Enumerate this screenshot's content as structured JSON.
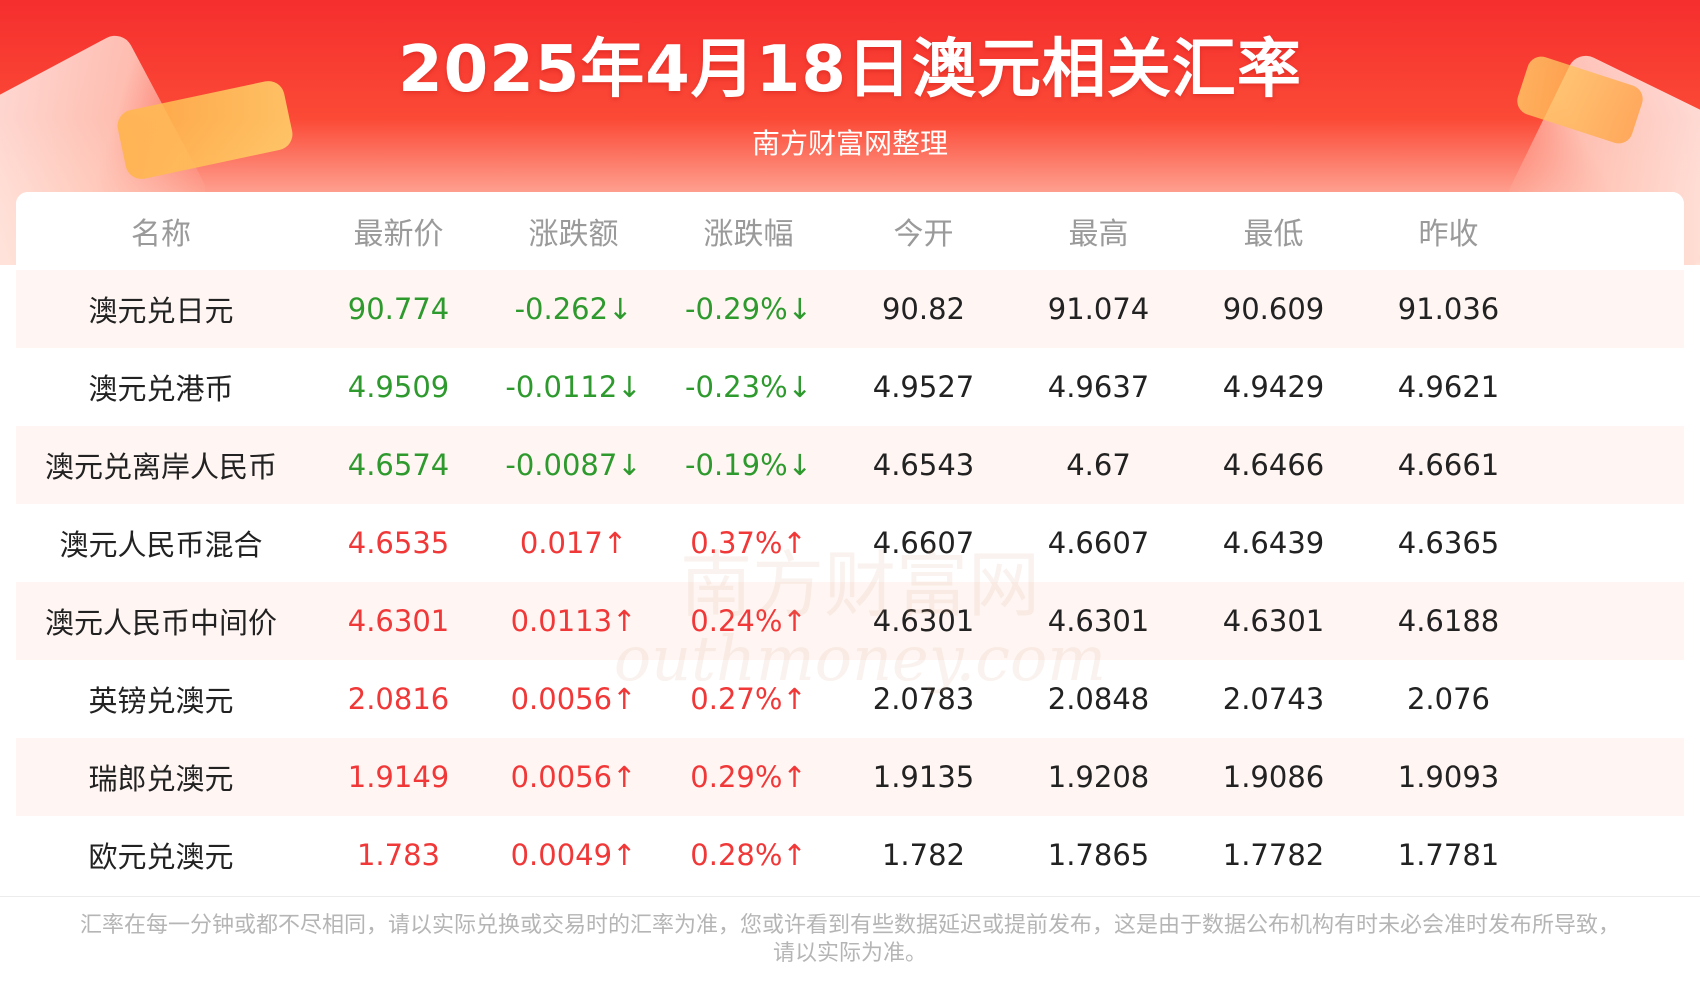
{
  "header": {
    "title": "2025年4月18日澳元相关汇率",
    "subtitle": "南方财富网整理"
  },
  "table": {
    "columns": [
      "名称",
      "最新价",
      "涨跌额",
      "涨跌幅",
      "今开",
      "最高",
      "最低",
      "昨收"
    ],
    "rows": [
      {
        "name": "澳元兑日元",
        "latest": "90.774",
        "change": "-0.262↓",
        "pct": "-0.29%↓",
        "open": "90.82",
        "high": "91.074",
        "low": "90.609",
        "prev": "91.036",
        "trend": "down"
      },
      {
        "name": "澳元兑港币",
        "latest": "4.9509",
        "change": "-0.0112↓",
        "pct": "-0.23%↓",
        "open": "4.9527",
        "high": "4.9637",
        "low": "4.9429",
        "prev": "4.9621",
        "trend": "down"
      },
      {
        "name": "澳元兑离岸人民币",
        "latest": "4.6574",
        "change": "-0.0087↓",
        "pct": "-0.19%↓",
        "open": "4.6543",
        "high": "4.67",
        "low": "4.6466",
        "prev": "4.6661",
        "trend": "down"
      },
      {
        "name": "澳元人民币混合",
        "latest": "4.6535",
        "change": "0.017↑",
        "pct": "0.37%↑",
        "open": "4.6607",
        "high": "4.6607",
        "low": "4.6439",
        "prev": "4.6365",
        "trend": "up"
      },
      {
        "name": "澳元人民币中间价",
        "latest": "4.6301",
        "change": "0.0113↑",
        "pct": "0.24%↑",
        "open": "4.6301",
        "high": "4.6301",
        "low": "4.6301",
        "prev": "4.6188",
        "trend": "up"
      },
      {
        "name": "英镑兑澳元",
        "latest": "2.0816",
        "change": "0.0056↑",
        "pct": "0.27%↑",
        "open": "2.0783",
        "high": "2.0848",
        "low": "2.0743",
        "prev": "2.076",
        "trend": "up"
      },
      {
        "name": "瑞郎兑澳元",
        "latest": "1.9149",
        "change": "0.0056↑",
        "pct": "0.29%↑",
        "open": "1.9135",
        "high": "1.9208",
        "low": "1.9086",
        "prev": "1.9093",
        "trend": "up"
      },
      {
        "name": "欧元兑澳元",
        "latest": "1.783",
        "change": "0.0049↑",
        "pct": "0.28%↑",
        "open": "1.782",
        "high": "1.7865",
        "low": "1.7782",
        "prev": "1.7781",
        "trend": "up"
      }
    ]
  },
  "watermark": {
    "cn": "南方财富网",
    "en": "outhmoney.com"
  },
  "footer": {
    "line1": "汇率在每一分钟或都不尽相同，请以实际兑换或交易时的汇率为准，您或许看到有些数据延迟或提前发布，这是由于数据公布机构有时未必会准时发布所导致，",
    "line2": "请以实际为准。"
  },
  "colors": {
    "banner": "#f52e2e",
    "up": "#f03838",
    "down": "#2e9a2e",
    "row_alt": "#fff6f3"
  }
}
